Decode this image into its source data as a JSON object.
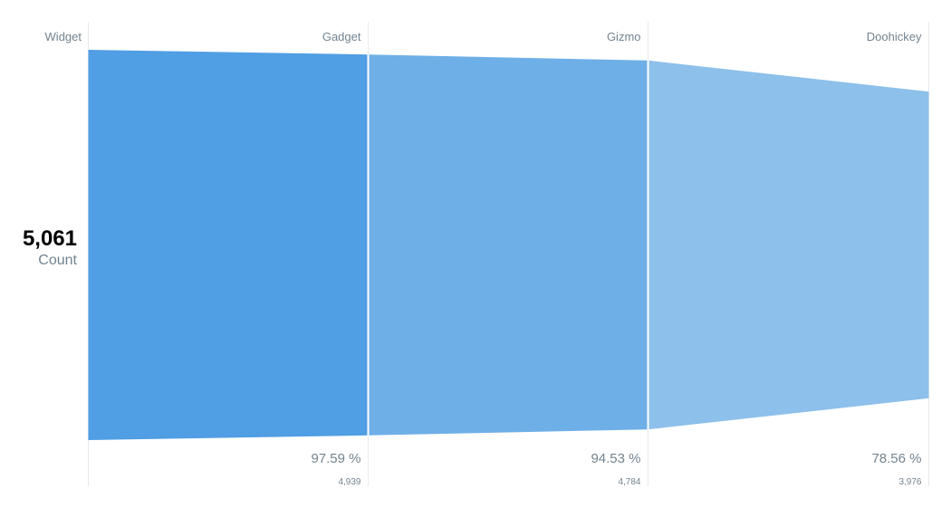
{
  "chart_data": {
    "type": "funnel",
    "categories": [
      "Widget",
      "Gadget",
      "Gizmo",
      "Doohickey"
    ],
    "values": [
      5061,
      4939,
      4784,
      3976
    ],
    "values_display": [
      "5,061",
      "4,939",
      "4,784",
      "3,976"
    ],
    "percent_labels": [
      "",
      "97.59 %",
      "94.53 %",
      "78.56 %"
    ],
    "first_value_label": "5,061",
    "metric_label": "Count",
    "colors": [
      "#509ee3",
      "#6eafe7",
      "#8dc0eb"
    ],
    "divider_color": "#e6ebef"
  }
}
